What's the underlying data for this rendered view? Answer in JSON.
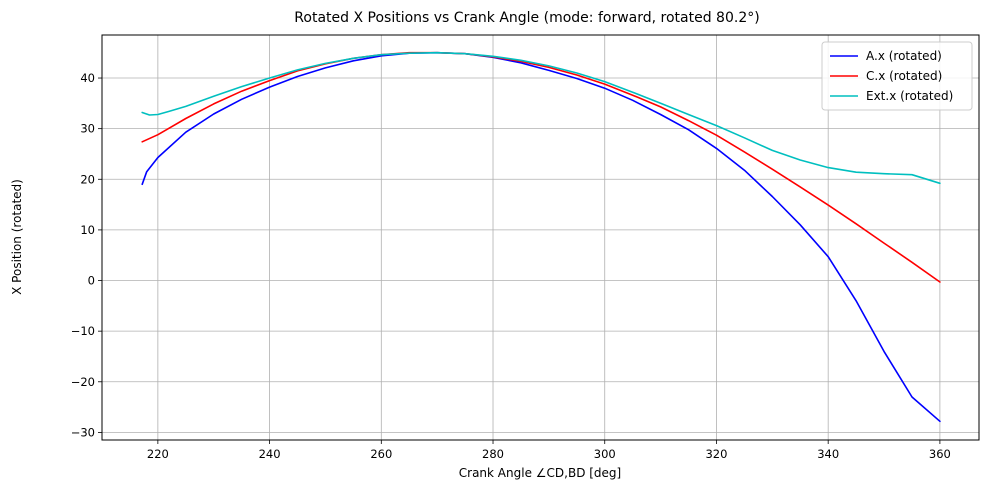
{
  "chart_data": {
    "type": "line",
    "title": "Rotated X Positions vs Crank Angle (mode: forward, rotated 80.2°)",
    "xlabel": "Crank Angle ∠CD,BD [deg]",
    "ylabel": "X Position (rotated)",
    "xlim": [
      210,
      367
    ],
    "ylim": [
      -31.5,
      48.5
    ],
    "xticks": [
      220,
      240,
      260,
      280,
      300,
      320,
      340,
      360
    ],
    "yticks": [
      -30,
      -20,
      -10,
      0,
      10,
      20,
      30,
      40
    ],
    "grid": true,
    "legend_position": "top-right",
    "series": [
      {
        "name": "A.x (rotated)",
        "color": "#0000ff",
        "x": [
          217.2,
          218,
          220,
          225,
          230,
          235,
          240,
          245,
          250,
          255,
          260,
          265,
          270,
          275,
          280,
          285,
          290,
          295,
          300,
          305,
          310,
          315,
          320,
          325,
          330,
          335,
          340,
          345,
          350,
          355,
          360
        ],
        "y": [
          19.0,
          21.5,
          24.3,
          29.3,
          32.9,
          35.8,
          38.2,
          40.3,
          42.0,
          43.4,
          44.4,
          44.9,
          45.0,
          44.8,
          44.1,
          43.0,
          41.5,
          39.9,
          38.0,
          35.6,
          32.8,
          29.8,
          26.1,
          21.8,
          16.6,
          11.0,
          4.7,
          -4.0,
          -14.0,
          -23.0,
          -27.8
        ]
      },
      {
        "name": "C.x (rotated)",
        "color": "#ff0000",
        "x": [
          217.2,
          220,
          225,
          230,
          235,
          240,
          245,
          250,
          255,
          260,
          265,
          270,
          275,
          280,
          285,
          290,
          295,
          300,
          305,
          310,
          315,
          320,
          325,
          330,
          335,
          340,
          345,
          350,
          355,
          360
        ],
        "y": [
          27.4,
          28.8,
          32.0,
          34.9,
          37.4,
          39.5,
          41.4,
          42.8,
          43.9,
          44.6,
          45.0,
          45.0,
          44.8,
          44.2,
          43.3,
          42.1,
          40.6,
          38.8,
          36.6,
          34.3,
          31.6,
          28.7,
          25.4,
          22.0,
          18.5,
          14.9,
          11.2,
          7.4,
          3.6,
          -0.3
        ]
      },
      {
        "name": "Ext.x (rotated)",
        "color": "#00bfbf",
        "x": [
          217.2,
          218.5,
          220,
          222,
          225,
          230,
          235,
          240,
          245,
          250,
          255,
          260,
          265,
          270,
          275,
          280,
          285,
          290,
          295,
          300,
          305,
          310,
          315,
          320,
          325,
          330,
          335,
          340,
          345,
          350,
          355,
          360
        ],
        "y": [
          33.2,
          32.7,
          32.8,
          33.4,
          34.4,
          36.4,
          38.3,
          40.0,
          41.6,
          42.9,
          43.9,
          44.6,
          44.9,
          45.0,
          44.8,
          44.3,
          43.5,
          42.4,
          41.0,
          39.3,
          37.2,
          35.0,
          32.8,
          30.6,
          28.2,
          25.7,
          23.8,
          22.3,
          21.4,
          21.1,
          20.9,
          19.2
        ]
      }
    ]
  }
}
